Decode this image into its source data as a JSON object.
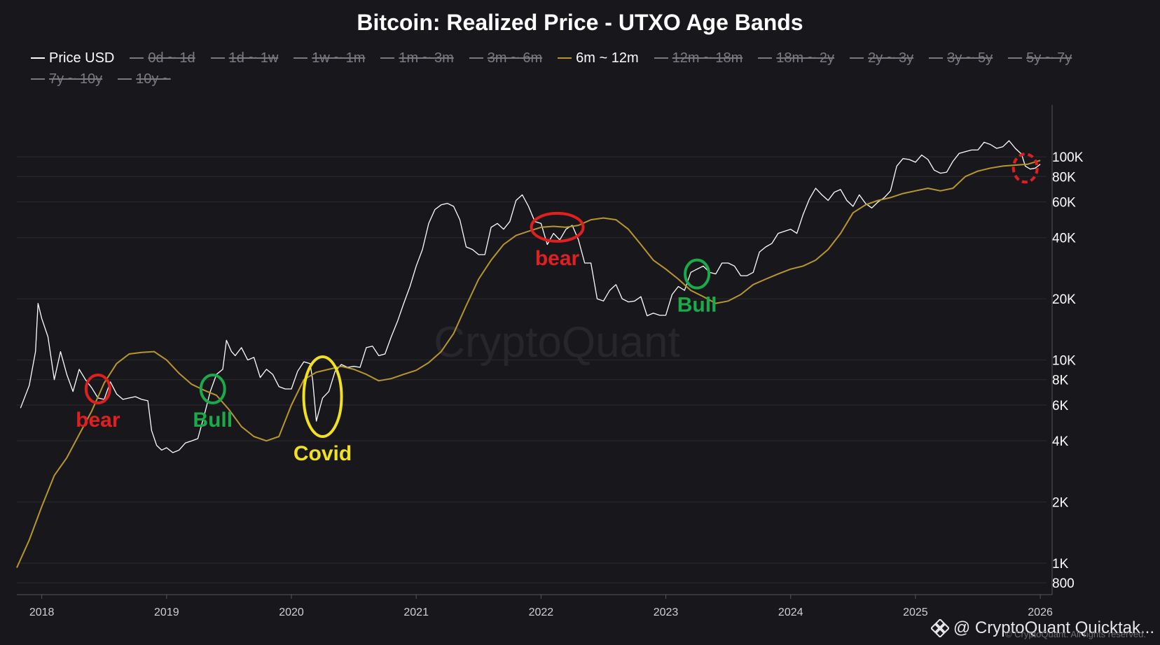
{
  "chart_data": {
    "type": "line",
    "title": "Bitcoin: Realized Price - UTXO Age Bands",
    "y_scale": "log",
    "ylim": [
      700,
      180000
    ],
    "xlim": [
      2017.8,
      2026.05
    ],
    "x_ticks": [
      "2018",
      "2019",
      "2020",
      "2021",
      "2022",
      "2023",
      "2024",
      "2025",
      "2026"
    ],
    "y_ticks": [
      {
        "value": 800,
        "label": "800"
      },
      {
        "value": 1000,
        "label": "1K"
      },
      {
        "value": 2000,
        "label": "2K"
      },
      {
        "value": 4000,
        "label": "4K"
      },
      {
        "value": 6000,
        "label": "6K"
      },
      {
        "value": 8000,
        "label": "8K"
      },
      {
        "value": 10000,
        "label": "10K"
      },
      {
        "value": 20000,
        "label": "20K"
      },
      {
        "value": 40000,
        "label": "40K"
      },
      {
        "value": 60000,
        "label": "60K"
      },
      {
        "value": 80000,
        "label": "80K"
      },
      {
        "value": 100000,
        "label": "100K"
      }
    ],
    "grid": true,
    "legend_position": "top",
    "legend": [
      {
        "label": "Price USD",
        "color": "#ffffff",
        "visible": true
      },
      {
        "label": "0d ~ 1d",
        "visible": false
      },
      {
        "label": "1d ~ 1w",
        "visible": false
      },
      {
        "label": "1w ~ 1m",
        "visible": false
      },
      {
        "label": "1m ~ 3m",
        "visible": false
      },
      {
        "label": "3m ~ 6m",
        "visible": false
      },
      {
        "label": "6m ~ 12m",
        "color": "#b8962e",
        "visible": true
      },
      {
        "label": "12m ~ 18m",
        "visible": false
      },
      {
        "label": "18m ~ 2y",
        "visible": false
      },
      {
        "label": "2y ~ 3y",
        "visible": false
      },
      {
        "label": "3y ~ 5y",
        "visible": false
      },
      {
        "label": "5y ~ 7y",
        "visible": false
      },
      {
        "label": "7y ~ 10y",
        "visible": false
      },
      {
        "label": "10y ~",
        "visible": false
      }
    ],
    "series": [
      {
        "name": "Price USD",
        "color": "#ffffff",
        "points": [
          [
            2017.83,
            5800
          ],
          [
            2017.9,
            7500
          ],
          [
            2017.95,
            11000
          ],
          [
            2017.97,
            19000
          ],
          [
            2018.0,
            16000
          ],
          [
            2018.05,
            13000
          ],
          [
            2018.1,
            8000
          ],
          [
            2018.15,
            11000
          ],
          [
            2018.2,
            8500
          ],
          [
            2018.25,
            7000
          ],
          [
            2018.3,
            9000
          ],
          [
            2018.35,
            8000
          ],
          [
            2018.4,
            7300
          ],
          [
            2018.45,
            6500
          ],
          [
            2018.5,
            6400
          ],
          [
            2018.55,
            7800
          ],
          [
            2018.6,
            6800
          ],
          [
            2018.65,
            6400
          ],
          [
            2018.7,
            6500
          ],
          [
            2018.75,
            6600
          ],
          [
            2018.8,
            6400
          ],
          [
            2018.85,
            6300
          ],
          [
            2018.88,
            4500
          ],
          [
            2018.92,
            3800
          ],
          [
            2018.96,
            3600
          ],
          [
            2019.0,
            3700
          ],
          [
            2019.05,
            3500
          ],
          [
            2019.1,
            3600
          ],
          [
            2019.15,
            3900
          ],
          [
            2019.2,
            4000
          ],
          [
            2019.25,
            4100
          ],
          [
            2019.3,
            5300
          ],
          [
            2019.35,
            7000
          ],
          [
            2019.4,
            8500
          ],
          [
            2019.45,
            9000
          ],
          [
            2019.48,
            12500
          ],
          [
            2019.52,
            11000
          ],
          [
            2019.55,
            10500
          ],
          [
            2019.6,
            11500
          ],
          [
            2019.65,
            10000
          ],
          [
            2019.7,
            10300
          ],
          [
            2019.75,
            8200
          ],
          [
            2019.8,
            9000
          ],
          [
            2019.85,
            8500
          ],
          [
            2019.9,
            7400
          ],
          [
            2019.95,
            7200
          ],
          [
            2020.0,
            7200
          ],
          [
            2020.05,
            8800
          ],
          [
            2020.1,
            9800
          ],
          [
            2020.15,
            9600
          ],
          [
            2020.17,
            8000
          ],
          [
            2020.2,
            5000
          ],
          [
            2020.25,
            6500
          ],
          [
            2020.3,
            7000
          ],
          [
            2020.35,
            8800
          ],
          [
            2020.4,
            9500
          ],
          [
            2020.45,
            9200
          ],
          [
            2020.5,
            9300
          ],
          [
            2020.55,
            9200
          ],
          [
            2020.6,
            11500
          ],
          [
            2020.65,
            11700
          ],
          [
            2020.7,
            10500
          ],
          [
            2020.75,
            10700
          ],
          [
            2020.8,
            13000
          ],
          [
            2020.85,
            15500
          ],
          [
            2020.9,
            19000
          ],
          [
            2020.95,
            23000
          ],
          [
            2021.0,
            29000
          ],
          [
            2021.05,
            35000
          ],
          [
            2021.1,
            47000
          ],
          [
            2021.15,
            55000
          ],
          [
            2021.2,
            58000
          ],
          [
            2021.25,
            59000
          ],
          [
            2021.3,
            57000
          ],
          [
            2021.35,
            49000
          ],
          [
            2021.4,
            36000
          ],
          [
            2021.45,
            35000
          ],
          [
            2021.5,
            33000
          ],
          [
            2021.55,
            33000
          ],
          [
            2021.6,
            45000
          ],
          [
            2021.65,
            47000
          ],
          [
            2021.7,
            44000
          ],
          [
            2021.75,
            48000
          ],
          [
            2021.8,
            61000
          ],
          [
            2021.85,
            65000
          ],
          [
            2021.9,
            57000
          ],
          [
            2021.95,
            48000
          ],
          [
            2022.0,
            47000
          ],
          [
            2022.05,
            37000
          ],
          [
            2022.1,
            42000
          ],
          [
            2022.15,
            39000
          ],
          [
            2022.2,
            44000
          ],
          [
            2022.25,
            46000
          ],
          [
            2022.3,
            39000
          ],
          [
            2022.35,
            30000
          ],
          [
            2022.4,
            30000
          ],
          [
            2022.45,
            20000
          ],
          [
            2022.5,
            19500
          ],
          [
            2022.55,
            22000
          ],
          [
            2022.6,
            23500
          ],
          [
            2022.65,
            20000
          ],
          [
            2022.7,
            19300
          ],
          [
            2022.75,
            19500
          ],
          [
            2022.8,
            20500
          ],
          [
            2022.85,
            16500
          ],
          [
            2022.9,
            17000
          ],
          [
            2022.95,
            16600
          ],
          [
            2023.0,
            16600
          ],
          [
            2023.05,
            21000
          ],
          [
            2023.1,
            23000
          ],
          [
            2023.15,
            22000
          ],
          [
            2023.2,
            27000
          ],
          [
            2023.25,
            28000
          ],
          [
            2023.3,
            29000
          ],
          [
            2023.35,
            27000
          ],
          [
            2023.4,
            26500
          ],
          [
            2023.45,
            30000
          ],
          [
            2023.5,
            30000
          ],
          [
            2023.55,
            29000
          ],
          [
            2023.6,
            26000
          ],
          [
            2023.65,
            26000
          ],
          [
            2023.7,
            27000
          ],
          [
            2023.75,
            34000
          ],
          [
            2023.8,
            36000
          ],
          [
            2023.85,
            37500
          ],
          [
            2023.9,
            42000
          ],
          [
            2023.95,
            43000
          ],
          [
            2024.0,
            44000
          ],
          [
            2024.05,
            42000
          ],
          [
            2024.1,
            52000
          ],
          [
            2024.15,
            62000
          ],
          [
            2024.2,
            70000
          ],
          [
            2024.25,
            65000
          ],
          [
            2024.3,
            61000
          ],
          [
            2024.35,
            67000
          ],
          [
            2024.4,
            69000
          ],
          [
            2024.45,
            61000
          ],
          [
            2024.5,
            57000
          ],
          [
            2024.55,
            65000
          ],
          [
            2024.6,
            59000
          ],
          [
            2024.65,
            56000
          ],
          [
            2024.7,
            60000
          ],
          [
            2024.75,
            63000
          ],
          [
            2024.8,
            68000
          ],
          [
            2024.85,
            90000
          ],
          [
            2024.9,
            98000
          ],
          [
            2024.95,
            97000
          ],
          [
            2025.0,
            94000
          ],
          [
            2025.05,
            102000
          ],
          [
            2025.1,
            97000
          ],
          [
            2025.15,
            86000
          ],
          [
            2025.2,
            83000
          ],
          [
            2025.25,
            84000
          ],
          [
            2025.3,
            95000
          ],
          [
            2025.35,
            104000
          ],
          [
            2025.4,
            106000
          ],
          [
            2025.45,
            108000
          ],
          [
            2025.5,
            108000
          ],
          [
            2025.55,
            118000
          ],
          [
            2025.6,
            115000
          ],
          [
            2025.65,
            110000
          ],
          [
            2025.7,
            112000
          ],
          [
            2025.75,
            120000
          ],
          [
            2025.8,
            110000
          ],
          [
            2025.85,
            103000
          ],
          [
            2025.88,
            90000
          ],
          [
            2025.92,
            87000
          ],
          [
            2025.96,
            88000
          ],
          [
            2026.0,
            92000
          ]
        ]
      },
      {
        "name": "6m ~ 12m",
        "color": "#b8962e",
        "points": [
          [
            2017.8,
            950
          ],
          [
            2017.9,
            1300
          ],
          [
            2018.0,
            1900
          ],
          [
            2018.1,
            2700
          ],
          [
            2018.2,
            3300
          ],
          [
            2018.3,
            4300
          ],
          [
            2018.4,
            5600
          ],
          [
            2018.5,
            7700
          ],
          [
            2018.6,
            9600
          ],
          [
            2018.7,
            10700
          ],
          [
            2018.8,
            10900
          ],
          [
            2018.9,
            11000
          ],
          [
            2019.0,
            10000
          ],
          [
            2019.1,
            8600
          ],
          [
            2019.2,
            7600
          ],
          [
            2019.3,
            7100
          ],
          [
            2019.4,
            6700
          ],
          [
            2019.5,
            5700
          ],
          [
            2019.6,
            4700
          ],
          [
            2019.7,
            4200
          ],
          [
            2019.8,
            4000
          ],
          [
            2019.9,
            4200
          ],
          [
            2020.0,
            6000
          ],
          [
            2020.1,
            8000
          ],
          [
            2020.2,
            8700
          ],
          [
            2020.3,
            9000
          ],
          [
            2020.4,
            9300
          ],
          [
            2020.5,
            9000
          ],
          [
            2020.6,
            8500
          ],
          [
            2020.7,
            7900
          ],
          [
            2020.8,
            8100
          ],
          [
            2020.9,
            8500
          ],
          [
            2021.0,
            8900
          ],
          [
            2021.1,
            9700
          ],
          [
            2021.2,
            11000
          ],
          [
            2021.3,
            13500
          ],
          [
            2021.4,
            18500
          ],
          [
            2021.5,
            25000
          ],
          [
            2021.6,
            31000
          ],
          [
            2021.7,
            37000
          ],
          [
            2021.8,
            41000
          ],
          [
            2021.9,
            43000
          ],
          [
            2022.0,
            45000
          ],
          [
            2022.1,
            45500
          ],
          [
            2022.2,
            45000
          ],
          [
            2022.3,
            46000
          ],
          [
            2022.4,
            49000
          ],
          [
            2022.5,
            50000
          ],
          [
            2022.6,
            49000
          ],
          [
            2022.7,
            44000
          ],
          [
            2022.8,
            37000
          ],
          [
            2022.9,
            31000
          ],
          [
            2023.0,
            28000
          ],
          [
            2023.1,
            25000
          ],
          [
            2023.2,
            22000
          ],
          [
            2023.3,
            20500
          ],
          [
            2023.4,
            19000
          ],
          [
            2023.5,
            19500
          ],
          [
            2023.6,
            21000
          ],
          [
            2023.7,
            23500
          ],
          [
            2023.8,
            25000
          ],
          [
            2023.9,
            26500
          ],
          [
            2024.0,
            28000
          ],
          [
            2024.1,
            29000
          ],
          [
            2024.2,
            31000
          ],
          [
            2024.3,
            35000
          ],
          [
            2024.4,
            42000
          ],
          [
            2024.5,
            53000
          ],
          [
            2024.6,
            58000
          ],
          [
            2024.7,
            61000
          ],
          [
            2024.8,
            63000
          ],
          [
            2024.9,
            66000
          ],
          [
            2025.0,
            68000
          ],
          [
            2025.1,
            70000
          ],
          [
            2025.2,
            68000
          ],
          [
            2025.3,
            70000
          ],
          [
            2025.4,
            80000
          ],
          [
            2025.5,
            85000
          ],
          [
            2025.6,
            88000
          ],
          [
            2025.7,
            90000
          ],
          [
            2025.8,
            91000
          ],
          [
            2025.9,
            92000
          ],
          [
            2026.0,
            96000
          ]
        ]
      }
    ],
    "annotations": [
      {
        "label": "bear",
        "x": 2018.45,
        "y": 7200,
        "color": "#e02020",
        "text_color": "#e02020"
      },
      {
        "label": "Bull",
        "x": 2019.37,
        "y": 7200,
        "color": "#1aaa4a",
        "text_color": "#1aaa4a"
      },
      {
        "label": "Covid",
        "x": 2020.25,
        "y": 6600,
        "color": "#f0e020",
        "text_color": "#f0e020"
      },
      {
        "label": "bear",
        "x": 2022.13,
        "y": 45000,
        "color": "#e02020",
        "text_color": "#e02020"
      },
      {
        "label": "Bull",
        "x": 2023.25,
        "y": 26500,
        "color": "#1aaa4a",
        "text_color": "#1aaa4a"
      },
      {
        "label": "",
        "x": 2025.88,
        "y": 88000,
        "color": "#e02020",
        "dashed": true
      }
    ],
    "watermark": "CryptoQuant"
  },
  "footer": {
    "brand": "@ CryptoQuant Quicktak...",
    "copyright": "© CryptoQuant. All rights reserved."
  }
}
